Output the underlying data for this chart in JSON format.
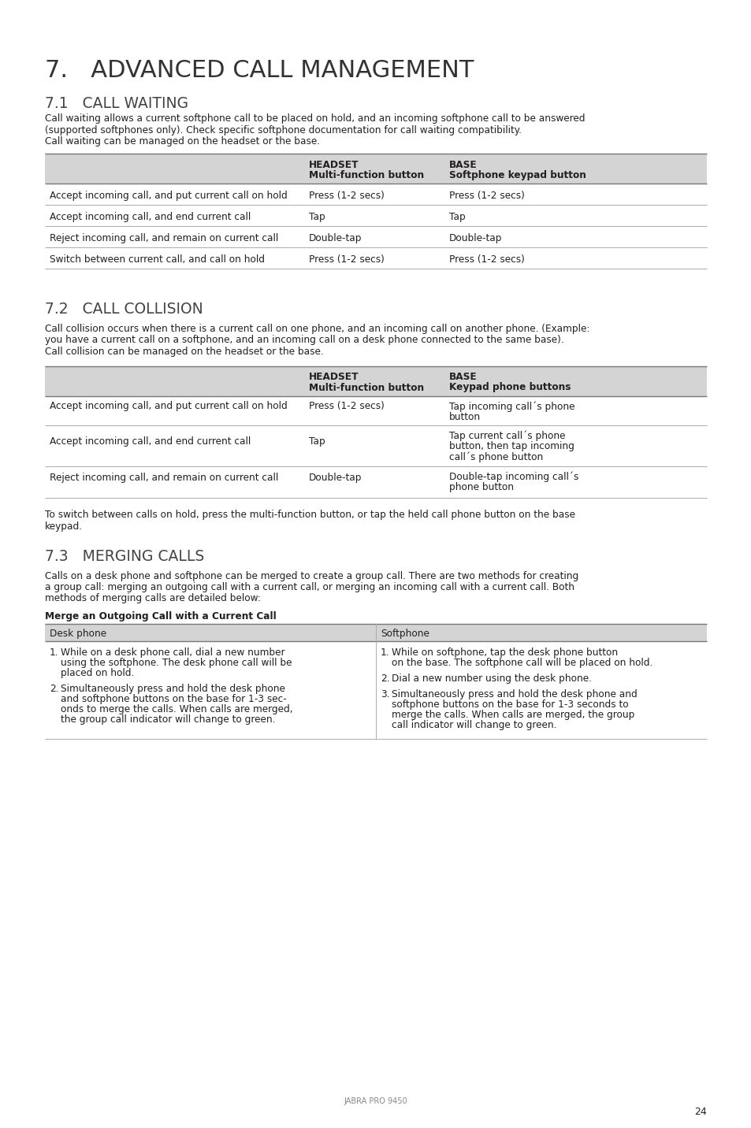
{
  "bg_color": "#ffffff",
  "text_color": "#231f20",
  "header_bg": "#d4d4d4",
  "line_color": "#999999",
  "page_title": "7.   ADVANCED CALL MANAGEMENT",
  "section1_title": "7.1   CALL WAITING",
  "section1_body_lines": [
    "Call waiting allows a current softphone call to be placed on hold, and an incoming softphone call to be answered",
    "(supported softphones only). Check specific softphone documentation for call waiting compatibility.",
    "Call waiting can be managed on the headset or the base."
  ],
  "table1_col1_header": "",
  "table1_col2_header1": "HEADSET",
  "table1_col2_header2": "Multi-function button",
  "table1_col3_header1": "BASE",
  "table1_col3_header2": "Softphone keypad button",
  "table1_rows": [
    [
      "Accept incoming call, and put current call on hold",
      "Press (1-2 secs)",
      "Press (1-2 secs)"
    ],
    [
      "Accept incoming call, and end current call",
      "Tap",
      "Tap"
    ],
    [
      "Reject incoming call, and remain on current call",
      "Double-tap",
      "Double-tap"
    ],
    [
      "Switch between current call, and call on hold",
      "Press (1-2 secs)",
      "Press (1-2 secs)"
    ]
  ],
  "section2_title": "7.2   CALL COLLISION",
  "section2_body_lines": [
    "Call collision occurs when there is a current call on one phone, and an incoming call on another phone. (Example:",
    "you have a current call on a softphone, and an incoming call on a desk phone connected to the same base).",
    "Call collision can be managed on the headset or the base."
  ],
  "table2_col2_header1": "HEADSET",
  "table2_col2_header2": "Multi-function button",
  "table2_col3_header1": "BASE",
  "table2_col3_header2": "Keypad phone buttons",
  "table2_rows": [
    [
      "Accept incoming call, and put current call on hold",
      "Press (1-2 secs)",
      [
        "Tap incoming call´s phone",
        "button"
      ]
    ],
    [
      "Accept incoming call, and end current call",
      "Tap",
      [
        "Tap current call´s phone",
        "button, then tap incoming",
        "call´s phone button"
      ]
    ],
    [
      "Reject incoming call, and remain on current call",
      "Double-tap",
      [
        "Double-tap incoming call´s",
        "phone button"
      ]
    ]
  ],
  "section2_footer_lines": [
    "To switch between calls on hold, press the multi-function button, or tap the held call phone button on the base",
    "keypad."
  ],
  "section3_title": "7.3   MERGING CALLS",
  "section3_body_lines": [
    "Calls on a desk phone and softphone can be merged to create a group call. There are two methods for creating",
    "a group call: merging an outgoing call with a current call, or merging an incoming call with a current call. Both",
    "methods of merging calls are detailed below:"
  ],
  "merge_subtitle": "Merge an Outgoing Call with a Current Call",
  "merge_col1_header": "Desk phone",
  "merge_col2_header": "Softphone",
  "merge_col1_items": [
    [
      "While on a desk phone call, dial a new number",
      "using the softphone. The desk phone call will be",
      "placed on hold."
    ],
    [
      "Simultaneously press and hold the desk phone",
      "and softphone buttons on the base for 1-3 sec-",
      "onds to merge the calls. When calls are merged,",
      "the group call indicator will change to green."
    ]
  ],
  "merge_col2_items": [
    [
      "While on softphone, tap the desk phone button",
      "on the base. The softphone call will be placed on hold."
    ],
    [
      "Dial a new number using the desk phone."
    ],
    [
      "Simultaneously press and hold the desk phone and",
      "softphone buttons on the base for 1-3 seconds to",
      "merge the calls. When calls are merged, the group",
      "call indicator will change to green."
    ]
  ],
  "footer_text": "JABRA PRO 9450",
  "page_number": "24"
}
